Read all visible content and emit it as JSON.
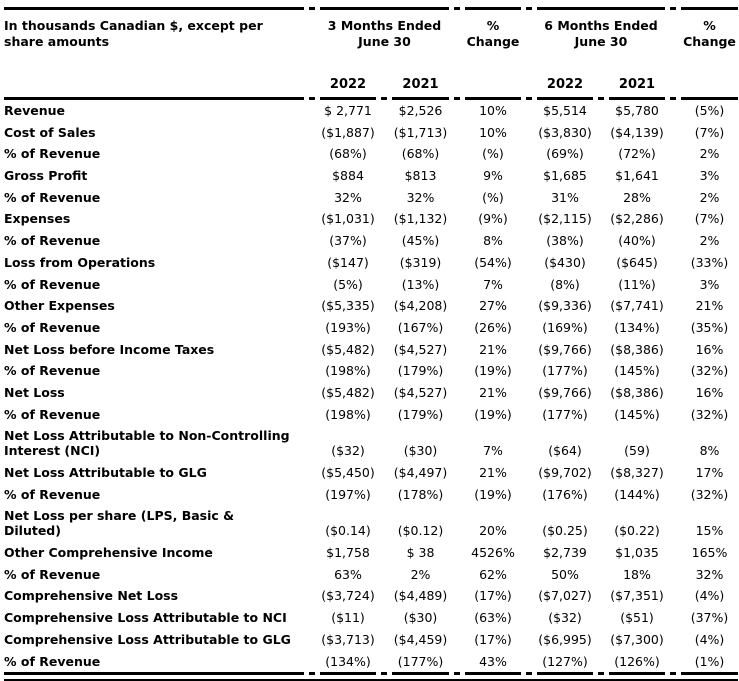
{
  "colors": {
    "text": "#000000",
    "rule": "#000000",
    "background": "#ffffff"
  },
  "header": {
    "corner": "In thousands Canadian $, except per\nshare amounts",
    "group1": "3 Months Ended\nJune 30",
    "pct1": "%\nChange",
    "group2": "6 Months Ended\nJune 30",
    "pct2": "%\nChange",
    "years": [
      "2022",
      "2021",
      "2022",
      "2021"
    ]
  },
  "rows": [
    {
      "label": "Revenue",
      "values": [
        "$ 2,771",
        "$2,526",
        "10%",
        "$5,514",
        "$5,780",
        "(5%)"
      ]
    },
    {
      "label": "Cost of Sales",
      "values": [
        "($1,887)",
        "($1,713)",
        "10%",
        "($3,830)",
        "($4,139)",
        "(7%)"
      ]
    },
    {
      "label": "% of Revenue",
      "values": [
        "(68%)",
        "(68%)",
        "(%)",
        "(69%)",
        "(72%)",
        "2%"
      ]
    },
    {
      "label": "Gross Profit",
      "values": [
        "$884",
        "$813",
        "9%",
        "$1,685",
        "$1,641",
        "3%"
      ]
    },
    {
      "label": "% of Revenue",
      "values": [
        "32%",
        "32%",
        "(%)",
        "31%",
        "28%",
        "2%"
      ]
    },
    {
      "label": "Expenses",
      "values": [
        "($1,031)",
        "($1,132)",
        "(9%)",
        "($2,115)",
        "($2,286)",
        "(7%)"
      ]
    },
    {
      "label": "% of Revenue",
      "values": [
        "(37%)",
        "(45%)",
        "8%",
        "(38%)",
        "(40%)",
        "2%"
      ]
    },
    {
      "label": "Loss from Operations",
      "values": [
        "($147)",
        "($319)",
        "(54%)",
        "($430)",
        "($645)",
        "(33%)"
      ]
    },
    {
      "label": "% of Revenue",
      "values": [
        "(5%)",
        "(13%)",
        "7%",
        "(8%)",
        "(11%)",
        "3%"
      ]
    },
    {
      "label": "Other Expenses",
      "values": [
        "($5,335)",
        "($4,208)",
        "27%",
        "($9,336)",
        "($7,741)",
        "21%"
      ]
    },
    {
      "label": "% of Revenue",
      "values": [
        "(193%)",
        "(167%)",
        "(26%)",
        "(169%)",
        "(134%)",
        "(35%)"
      ]
    },
    {
      "label": "Net Loss before Income Taxes",
      "values": [
        "($5,482)",
        "($4,527)",
        "21%",
        "($9,766)",
        "($8,386)",
        "16%"
      ]
    },
    {
      "label": "% of Revenue",
      "values": [
        "(198%)",
        "(179%)",
        "(19%)",
        "(177%)",
        "(145%)",
        "(32%)"
      ]
    },
    {
      "label": "Net Loss",
      "values": [
        "($5,482)",
        "($4,527)",
        "21%",
        "($9,766)",
        "($8,386)",
        "16%"
      ]
    },
    {
      "label": "% of Revenue",
      "values": [
        "(198%)",
        "(179%)",
        "(19%)",
        "(177%)",
        "(145%)",
        "(32%)"
      ]
    },
    {
      "label": "Net Loss Attributable to Non-Controlling\nInterest (NCI)",
      "values": [
        "($32)",
        "($30)",
        "7%",
        "($64)",
        "(59)",
        "8%"
      ]
    },
    {
      "label": "Net Loss Attributable to GLG",
      "values": [
        "($5,450)",
        "($4,497)",
        "21%",
        "($9,702)",
        "($8,327)",
        "17%"
      ]
    },
    {
      "label": "% of Revenue",
      "values": [
        "(197%)",
        "(178%)",
        "(19%)",
        "(176%)",
        "(144%)",
        "(32%)"
      ]
    },
    {
      "label": "Net Loss per share (LPS, Basic &\nDiluted)",
      "values": [
        "($0.14)",
        "($0.12)",
        "20%",
        "($0.25)",
        "($0.22)",
        "15%"
      ]
    },
    {
      "label": "Other Comprehensive Income",
      "values": [
        "$1,758",
        "$ 38",
        "4526%",
        "$2,739",
        "$1,035",
        "165%"
      ]
    },
    {
      "label": "% of Revenue",
      "values": [
        "63%",
        "2%",
        "62%",
        "50%",
        "18%",
        "32%"
      ]
    },
    {
      "label": "Comprehensive Net Loss",
      "values": [
        "($3,724)",
        "($4,489)",
        "(17%)",
        "($7,027)",
        "($7,351)",
        "(4%)"
      ]
    },
    {
      "label": "Comprehensive Loss Attributable to NCI",
      "values": [
        "($11)",
        "($30)",
        "(63%)",
        "($32)",
        "($51)",
        "(37%)"
      ]
    },
    {
      "label": "Comprehensive Loss Attributable to GLG",
      "values": [
        "($3,713)",
        "($4,459)",
        "(17%)",
        "($6,995)",
        "($7,300)",
        "(4%)"
      ]
    },
    {
      "label": "% of Revenue",
      "values": [
        "(134%)",
        "(177%)",
        "43%",
        "(127%)",
        "(126%)",
        "(1%)"
      ]
    }
  ]
}
